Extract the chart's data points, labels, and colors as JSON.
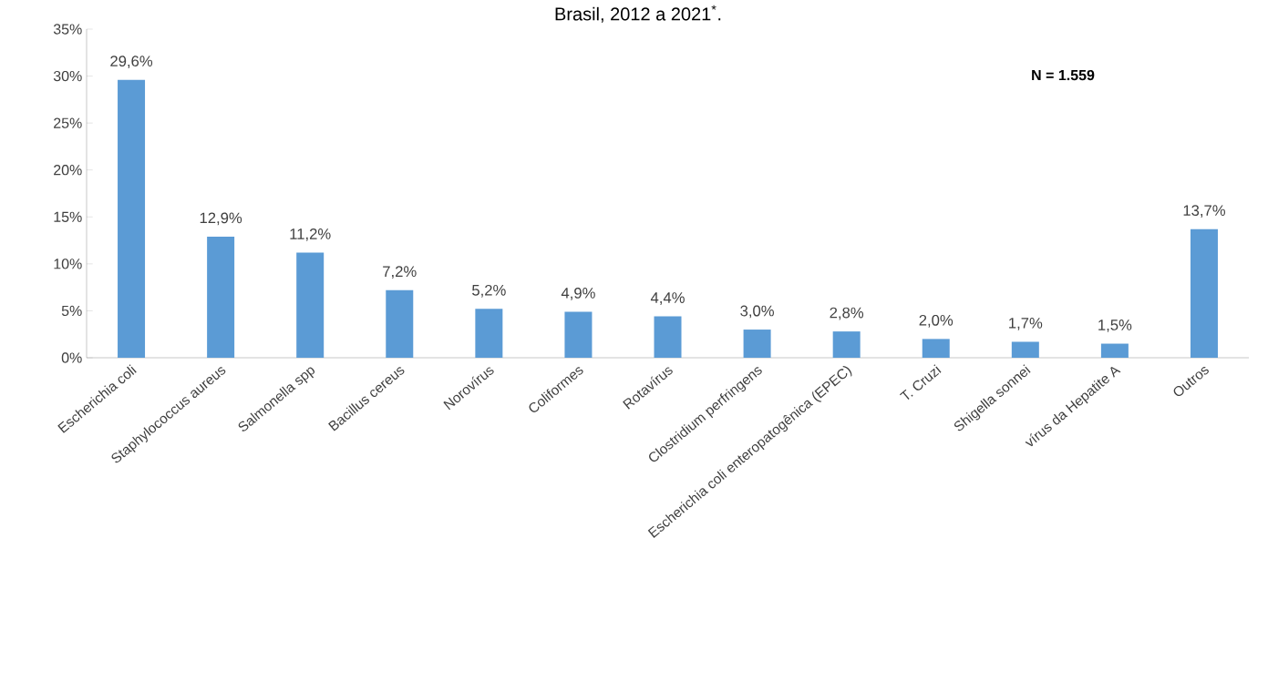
{
  "chart_data": {
    "type": "bar",
    "title": "Brasil, 2012 a 2021$^{*}$.",
    "categories": [
      "Escherichia coli",
      "Staphylococcus aureus",
      "Salmonella spp",
      "Bacillus cereus",
      "Norovírus",
      "Coliformes",
      "Rotavírus",
      "Clostridium perfringens",
      "Escherichia coli enteropatogênica (EPEC)",
      "T. Cruzi",
      "Shigella sonnei",
      "vírus da Hepatite A",
      "Outros"
    ],
    "values": [
      29.6,
      12.9,
      11.2,
      7.2,
      5.2,
      4.9,
      4.4,
      3.0,
      2.8,
      2.0,
      1.7,
      1.5,
      13.7
    ],
    "value_labels": [
      "29,6%",
      "12,9%",
      "11,2%",
      "7,2%",
      "5,2%",
      "4,9%",
      "4,4%",
      "3,0%",
      "2,8%",
      "2,0%",
      "1,7%",
      "1,5%",
      "13,7%"
    ],
    "color": "#5b9bd5",
    "ylim": [
      0,
      35
    ],
    "yticks": [
      {
        "value": 0,
        "label": "0%"
      },
      {
        "value": 5,
        "label": "5%"
      },
      {
        "value": 10,
        "label": "10%"
      },
      {
        "value": 15,
        "label": "15%"
      },
      {
        "value": 20,
        "label": "20%"
      },
      {
        "value": 25,
        "label": "25%"
      },
      {
        "value": 30,
        "label": "30%"
      },
      {
        "value": 35,
        "label": "35%"
      }
    ],
    "annotations": [
      "N = 1.559"
    ],
    "grid": false
  }
}
